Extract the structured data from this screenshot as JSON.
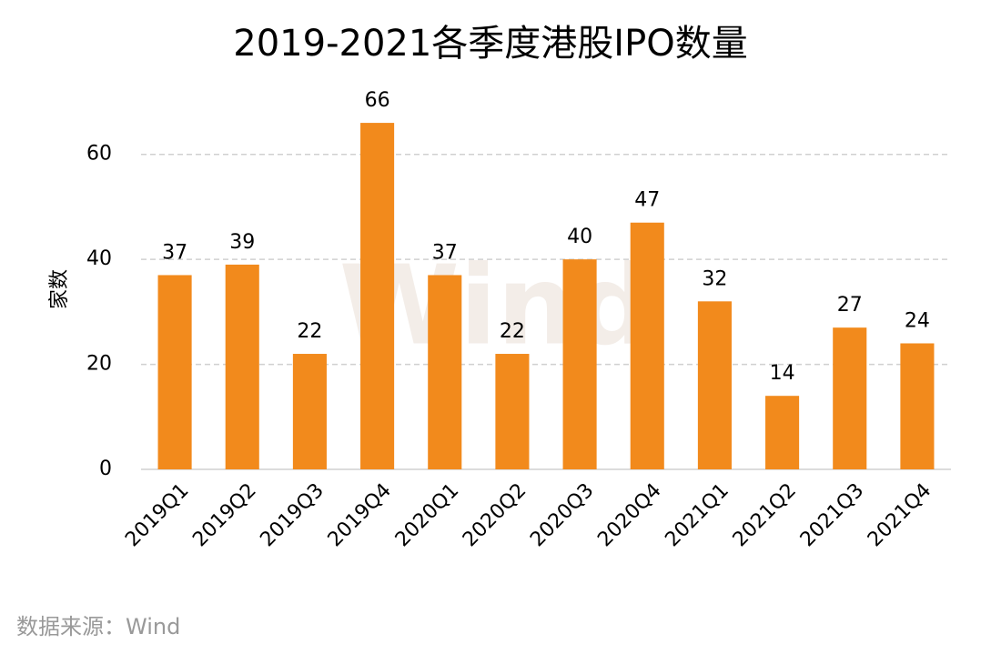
{
  "chart_data": {
    "type": "bar",
    "title": "2019-2021各季度港股IPO数量",
    "y_label": "家数",
    "categories": [
      "2019Q1",
      "2019Q2",
      "2019Q3",
      "2019Q4",
      "2020Q1",
      "2020Q2",
      "2020Q3",
      "2020Q4",
      "2021Q1",
      "2021Q2",
      "2021Q3",
      "2021Q4"
    ],
    "values": [
      37,
      39,
      22,
      66,
      37,
      22,
      40,
      47,
      32,
      14,
      27,
      24
    ],
    "color": "#f28a1c",
    "ylim": [
      0,
      70
    ],
    "yticks": [
      0,
      20,
      40,
      60
    ],
    "grid": true,
    "watermark": "Wind",
    "source": "数据来源：Wind"
  }
}
